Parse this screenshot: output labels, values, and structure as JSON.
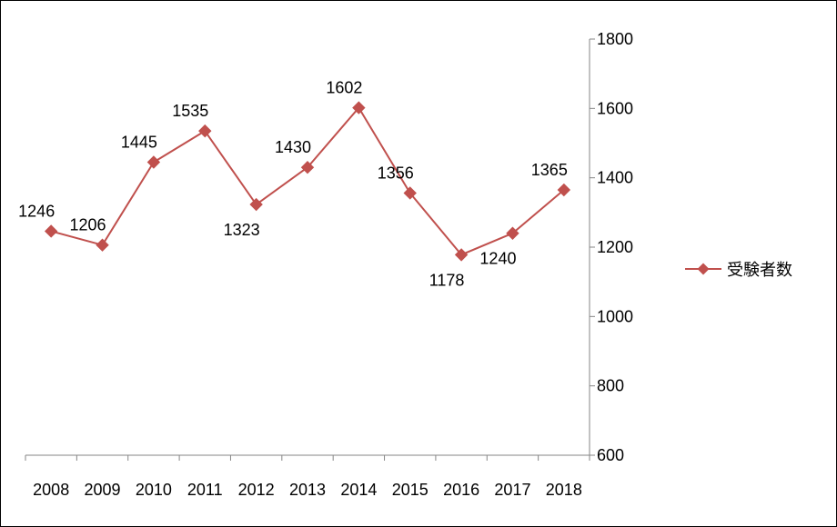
{
  "chart_data": {
    "type": "line",
    "categories": [
      "2008",
      "2009",
      "2010",
      "2011",
      "2012",
      "2013",
      "2014",
      "2015",
      "2016",
      "2017",
      "2018"
    ],
    "series": [
      {
        "name": "受験者数",
        "values": [
          1246,
          1206,
          1445,
          1535,
          1323,
          1430,
          1602,
          1356,
          1178,
          1240,
          1365
        ]
      }
    ],
    "y_ticks": [
      "600",
      "800",
      "1000",
      "1200",
      "1400",
      "1600",
      "1800"
    ],
    "ylim": [
      600,
      1800
    ],
    "y_axis_position": "right",
    "grid": false,
    "legend_position": "right",
    "line_color": "#c0504d",
    "marker": "diamond",
    "title": "",
    "xlabel": "",
    "ylabel": ""
  }
}
